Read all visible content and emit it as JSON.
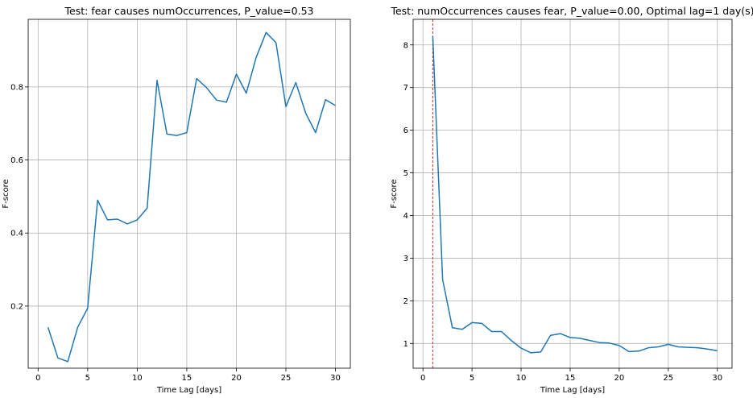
{
  "chart_data": [
    {
      "type": "line",
      "title": "Test: fear causes numOccurrences, P_value=0.53",
      "xlabel": "Time Lag [days]",
      "ylabel": "F-score",
      "xlim": [
        -1,
        31.5
      ],
      "ylim": [
        0.03,
        0.985
      ],
      "xticks": [
        0,
        5,
        10,
        15,
        20,
        25,
        30
      ],
      "yticks": [
        0.2,
        0.4,
        0.6,
        0.8
      ],
      "ytick_labels": [
        "0.2",
        "0.4",
        "0.6",
        "0.8"
      ],
      "grid": true,
      "color": "#1f77b4",
      "x": [
        1,
        2,
        3,
        4,
        5,
        6,
        7,
        8,
        9,
        10,
        11,
        12,
        13,
        14,
        15,
        16,
        17,
        18,
        19,
        20,
        21,
        22,
        23,
        24,
        25,
        26,
        27,
        28,
        29,
        30
      ],
      "y": [
        0.142,
        0.058,
        0.048,
        0.142,
        0.194,
        0.49,
        0.436,
        0.438,
        0.425,
        0.436,
        0.468,
        0.818,
        0.671,
        0.667,
        0.675,
        0.823,
        0.798,
        0.764,
        0.758,
        0.835,
        0.783,
        0.881,
        0.949,
        0.921,
        0.746,
        0.812,
        0.728,
        0.675,
        0.765,
        0.749
      ]
    },
    {
      "type": "line",
      "title": "Test: numOccurrences causes fear, P_value=0.00, Optimal lag=1 day(s)",
      "xlabel": "Time Lag [days]",
      "ylabel": "F-score",
      "xlim": [
        -1,
        31.5
      ],
      "ylim": [
        0.42,
        8.6
      ],
      "xticks": [
        0,
        5,
        10,
        15,
        20,
        25,
        30
      ],
      "yticks": [
        1,
        2,
        3,
        4,
        5,
        6,
        7,
        8
      ],
      "ytick_labels": [
        "1",
        "2",
        "3",
        "4",
        "5",
        "6",
        "7",
        "8"
      ],
      "grid": true,
      "color": "#1f77b4",
      "vline": {
        "x": 1,
        "color": "#d62728",
        "style": "dashed"
      },
      "x": [
        1,
        2,
        3,
        4,
        5,
        6,
        7,
        8,
        9,
        10,
        11,
        12,
        13,
        14,
        15,
        16,
        17,
        18,
        19,
        20,
        21,
        22,
        23,
        24,
        25,
        26,
        27,
        28,
        29,
        30
      ],
      "y": [
        8.2,
        2.5,
        1.37,
        1.33,
        1.49,
        1.47,
        1.28,
        1.28,
        1.07,
        0.89,
        0.78,
        0.8,
        1.19,
        1.23,
        1.14,
        1.12,
        1.07,
        1.02,
        1.01,
        0.95,
        0.81,
        0.82,
        0.9,
        0.92,
        0.98,
        0.92,
        0.91,
        0.9,
        0.87,
        0.83
      ]
    }
  ]
}
